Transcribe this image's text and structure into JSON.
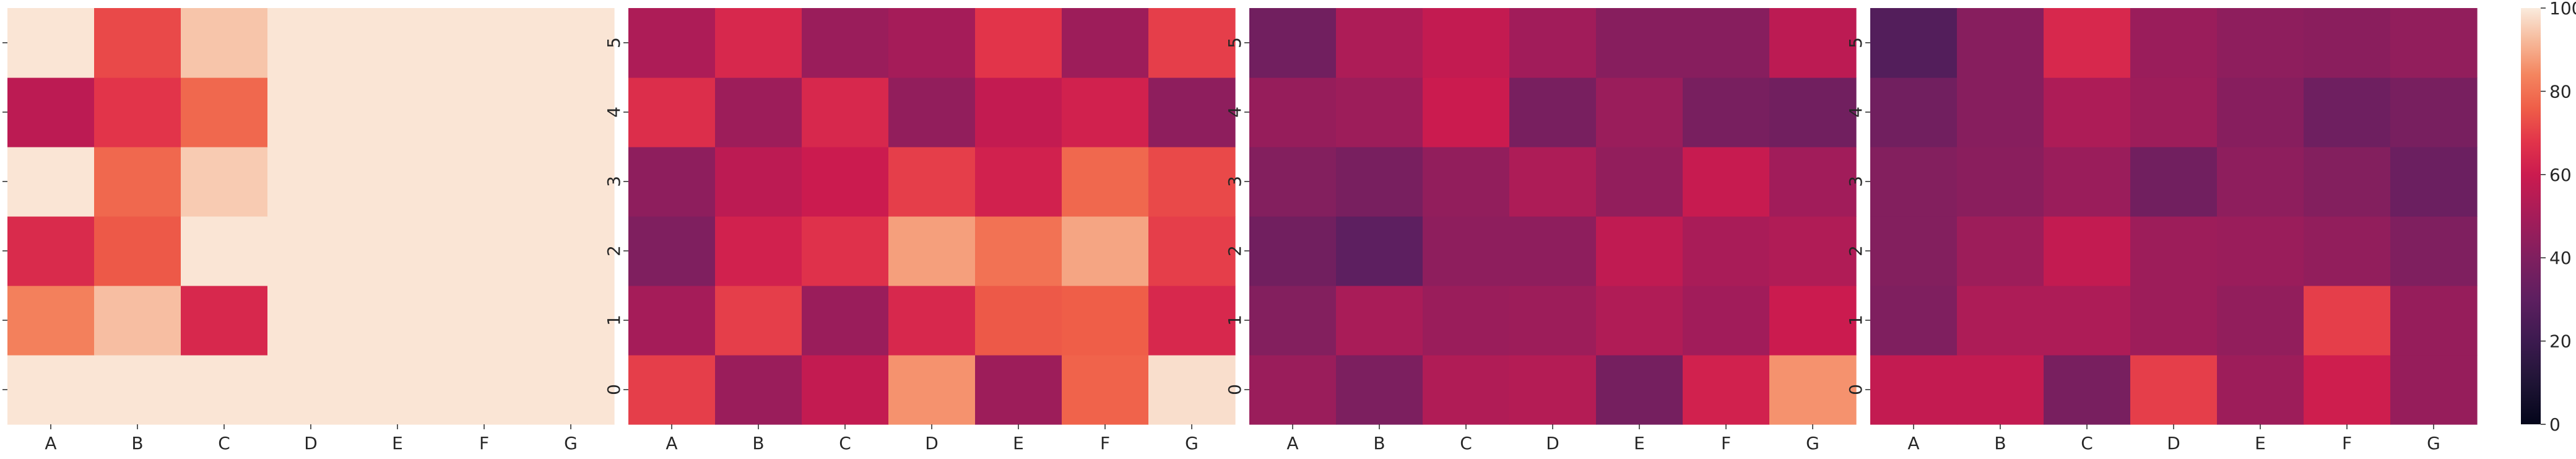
{
  "chart_data": {
    "type": "heatmap",
    "layout": "four panels in a row sharing one colorbar",
    "x_categories": [
      "A",
      "B",
      "C",
      "D",
      "E",
      "F",
      "G"
    ],
    "y_categories": [
      "0",
      "1",
      "2",
      "3",
      "4",
      "5"
    ],
    "colorbar": {
      "range": [
        0,
        100
      ],
      "ticks": [
        "0",
        "20",
        "40",
        "60",
        "80",
        "100"
      ],
      "tick_values": [
        0,
        20,
        40,
        60,
        80,
        100
      ],
      "colormap": "rocket"
    },
    "panels": [
      {
        "values": {
          "5": [
            99,
            72,
            94,
            99,
            99,
            99,
            99
          ],
          "4": [
            56,
            68,
            78,
            99,
            99,
            99,
            99
          ],
          "3": [
            99,
            78,
            95,
            99,
            99,
            99,
            99
          ],
          "2": [
            65,
            75,
            99,
            99,
            99,
            99,
            99
          ],
          "1": [
            83,
            93,
            64,
            99,
            99,
            99,
            99
          ],
          "0": [
            99,
            99,
            99,
            99,
            99,
            99,
            99
          ]
        }
      },
      {
        "values": {
          "5": [
            52,
            64,
            47,
            50,
            68,
            48,
            70
          ],
          "4": [
            66,
            48,
            64,
            45,
            58,
            62,
            44
          ],
          "3": [
            44,
            56,
            60,
            70,
            62,
            78,
            72
          ],
          "2": [
            40,
            62,
            67,
            88,
            80,
            89,
            70
          ],
          "1": [
            50,
            70,
            47,
            64,
            75,
            76,
            64
          ],
          "0": [
            70,
            47,
            58,
            86,
            48,
            77,
            98
          ]
        }
      },
      {
        "values": {
          "5": [
            36,
            52,
            58,
            49,
            42,
            42,
            56
          ],
          "4": [
            46,
            48,
            60,
            38,
            47,
            38,
            36
          ],
          "3": [
            41,
            38,
            45,
            52,
            45,
            59,
            49
          ],
          "2": [
            36,
            30,
            44,
            44,
            57,
            51,
            53
          ],
          "1": [
            41,
            51,
            47,
            48,
            53,
            49,
            60
          ],
          "0": [
            47,
            39,
            53,
            54,
            37,
            62,
            86
          ]
        }
      },
      {
        "values": {
          "5": [
            27,
            42,
            64,
            47,
            44,
            43,
            45
          ],
          "4": [
            36,
            42,
            52,
            48,
            42,
            35,
            38
          ],
          "3": [
            41,
            43,
            47,
            36,
            44,
            41,
            34
          ],
          "2": [
            41,
            48,
            58,
            48,
            47,
            45,
            40
          ],
          "1": [
            40,
            52,
            52,
            48,
            45,
            70,
            46
          ],
          "0": [
            58,
            58,
            38,
            70,
            48,
            61,
            46
          ]
        }
      }
    ]
  }
}
